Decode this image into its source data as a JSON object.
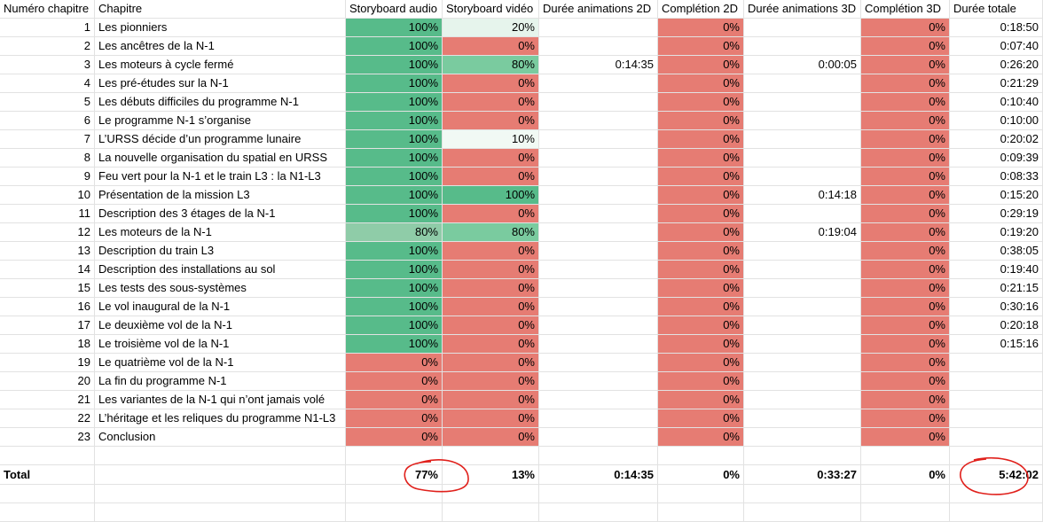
{
  "colors": {
    "green_full": "#57bb8a",
    "green_80": "#7acb9f",
    "green_80_audio": "#8fcca8",
    "green_20": "#e6f4ec",
    "green_10": "#f1f9f4",
    "red": "#e67c73",
    "white": "#ffffff",
    "annotation": "#e0201b"
  },
  "headers": [
    "Numéro chapitre",
    "Chapitre",
    "Storyboard audio",
    "Storyboard vidéo",
    "Durée animations 2D",
    "Complétion 2D",
    "Durée animations 3D",
    "Complétion 3D",
    "Durée totale"
  ],
  "rows": [
    {
      "num": "1",
      "chapitre": "Les pionniers",
      "audio": "100%",
      "video": "20%",
      "anim2d": "",
      "comp2d": "0%",
      "anim3d": "",
      "comp3d": "0%",
      "total": "0:18:50"
    },
    {
      "num": "2",
      "chapitre": "Les ancêtres de la N-1",
      "audio": "100%",
      "video": "0%",
      "anim2d": "",
      "comp2d": "0%",
      "anim3d": "",
      "comp3d": "0%",
      "total": "0:07:40"
    },
    {
      "num": "3",
      "chapitre": "Les moteurs à cycle fermé",
      "audio": "100%",
      "video": "80%",
      "anim2d": "0:14:35",
      "comp2d": "0%",
      "anim3d": "0:00:05",
      "comp3d": "0%",
      "total": "0:26:20"
    },
    {
      "num": "4",
      "chapitre": "Les pré-études sur la N-1",
      "audio": "100%",
      "video": "0%",
      "anim2d": "",
      "comp2d": "0%",
      "anim3d": "",
      "comp3d": "0%",
      "total": "0:21:29"
    },
    {
      "num": "5",
      "chapitre": "Les débuts difficiles du programme N-1",
      "audio": "100%",
      "video": "0%",
      "anim2d": "",
      "comp2d": "0%",
      "anim3d": "",
      "comp3d": "0%",
      "total": "0:10:40"
    },
    {
      "num": "6",
      "chapitre": "Le programme N-1 s’organise",
      "audio": "100%",
      "video": "0%",
      "anim2d": "",
      "comp2d": "0%",
      "anim3d": "",
      "comp3d": "0%",
      "total": "0:10:00"
    },
    {
      "num": "7",
      "chapitre": "L’URSS décide d’un programme lunaire",
      "audio": "100%",
      "video": "10%",
      "anim2d": "",
      "comp2d": "0%",
      "anim3d": "",
      "comp3d": "0%",
      "total": "0:20:02"
    },
    {
      "num": "8",
      "chapitre": "La nouvelle organisation du spatial en URSS",
      "audio": "100%",
      "video": "0%",
      "anim2d": "",
      "comp2d": "0%",
      "anim3d": "",
      "comp3d": "0%",
      "total": "0:09:39"
    },
    {
      "num": "9",
      "chapitre": "Feu vert pour la N-1 et le train L3 : la N1-L3",
      "audio": "100%",
      "video": "0%",
      "anim2d": "",
      "comp2d": "0%",
      "anim3d": "",
      "comp3d": "0%",
      "total": "0:08:33"
    },
    {
      "num": "10",
      "chapitre": "Présentation de la mission L3",
      "audio": "100%",
      "video": "100%",
      "anim2d": "",
      "comp2d": "0%",
      "anim3d": "0:14:18",
      "comp3d": "0%",
      "total": "0:15:20"
    },
    {
      "num": "11",
      "chapitre": "Description des 3 étages de la N-1",
      "audio": "100%",
      "video": "0%",
      "anim2d": "",
      "comp2d": "0%",
      "anim3d": "",
      "comp3d": "0%",
      "total": "0:29:19"
    },
    {
      "num": "12",
      "chapitre": "Les moteurs de la N-1",
      "audio": "80%",
      "video": "80%",
      "anim2d": "",
      "comp2d": "0%",
      "anim3d": "0:19:04",
      "comp3d": "0%",
      "total": "0:19:20"
    },
    {
      "num": "13",
      "chapitre": "Description du train L3",
      "audio": "100%",
      "video": "0%",
      "anim2d": "",
      "comp2d": "0%",
      "anim3d": "",
      "comp3d": "0%",
      "total": "0:38:05"
    },
    {
      "num": "14",
      "chapitre": "Description des installations au sol",
      "audio": "100%",
      "video": "0%",
      "anim2d": "",
      "comp2d": "0%",
      "anim3d": "",
      "comp3d": "0%",
      "total": "0:19:40"
    },
    {
      "num": "15",
      "chapitre": "Les tests des sous-systèmes",
      "audio": "100%",
      "video": "0%",
      "anim2d": "",
      "comp2d": "0%",
      "anim3d": "",
      "comp3d": "0%",
      "total": "0:21:15"
    },
    {
      "num": "16",
      "chapitre": "Le vol inaugural de la N-1",
      "audio": "100%",
      "video": "0%",
      "anim2d": "",
      "comp2d": "0%",
      "anim3d": "",
      "comp3d": "0%",
      "total": "0:30:16"
    },
    {
      "num": "17",
      "chapitre": "Le deuxième vol de la N-1",
      "audio": "100%",
      "video": "0%",
      "anim2d": "",
      "comp2d": "0%",
      "anim3d": "",
      "comp3d": "0%",
      "total": "0:20:18"
    },
    {
      "num": "18",
      "chapitre": "Le troisième vol de la N-1",
      "audio": "100%",
      "video": "0%",
      "anim2d": "",
      "comp2d": "0%",
      "anim3d": "",
      "comp3d": "0%",
      "total": "0:15:16"
    },
    {
      "num": "19",
      "chapitre": "Le quatrième vol de la N-1",
      "audio": "0%",
      "video": "0%",
      "anim2d": "",
      "comp2d": "0%",
      "anim3d": "",
      "comp3d": "0%",
      "total": ""
    },
    {
      "num": "20",
      "chapitre": "La fin du programme N-1",
      "audio": "0%",
      "video": "0%",
      "anim2d": "",
      "comp2d": "0%",
      "anim3d": "",
      "comp3d": "0%",
      "total": ""
    },
    {
      "num": "21",
      "chapitre": "Les variantes de la N-1 qui n’ont jamais volé",
      "audio": "0%",
      "video": "0%",
      "anim2d": "",
      "comp2d": "0%",
      "anim3d": "",
      "comp3d": "0%",
      "total": ""
    },
    {
      "num": "22",
      "chapitre": "L’héritage et les reliques du programme N1-L3",
      "audio": "0%",
      "video": "0%",
      "anim2d": "",
      "comp2d": "0%",
      "anim3d": "",
      "comp3d": "0%",
      "total": ""
    },
    {
      "num": "23",
      "chapitre": "Conclusion",
      "audio": "0%",
      "video": "0%",
      "anim2d": "",
      "comp2d": "0%",
      "anim3d": "",
      "comp3d": "0%",
      "total": ""
    }
  ],
  "totals": {
    "label": "Total",
    "audio": "77%",
    "video": "13%",
    "anim2d": "0:14:35",
    "comp2d": "0%",
    "anim3d": "0:33:27",
    "comp3d": "0%",
    "total": "5:42:02"
  }
}
